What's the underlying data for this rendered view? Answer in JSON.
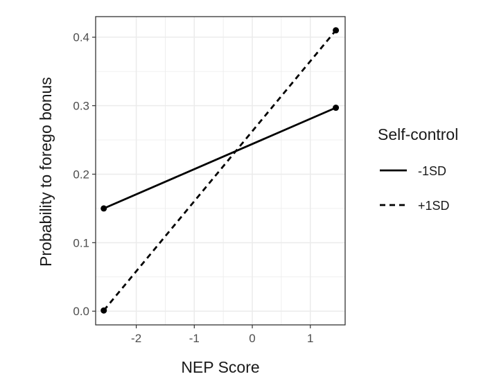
{
  "chart_data": {
    "type": "line",
    "xlabel": "NEP Score",
    "ylabel": "Probability to forego bonus",
    "xlim": [
      -2.7,
      1.6
    ],
    "ylim": [
      -0.02,
      0.43
    ],
    "xticks": [
      -2,
      -1,
      0,
      1
    ],
    "xtick_labels": [
      "-2",
      "-1",
      "0",
      "1"
    ],
    "yticks": [
      0.0,
      0.1,
      0.2,
      0.3,
      0.4
    ],
    "ytick_labels": [
      "0.0",
      "0.1",
      "0.2",
      "0.3",
      "0.4"
    ],
    "grid": true,
    "legend": {
      "title": "Self-control",
      "placement": "right"
    },
    "series": [
      {
        "name": "-1SD",
        "line_style": "solid",
        "x": [
          -2.56,
          1.44
        ],
        "y": [
          0.15,
          0.297
        ]
      },
      {
        "name": "+1SD",
        "line_style": "dashed",
        "x": [
          -2.56,
          1.44
        ],
        "y": [
          0.001,
          0.41
        ]
      }
    ],
    "colors": {
      "line": "#000000",
      "grid": "#ebebeb",
      "panel_border": "#333333"
    }
  }
}
